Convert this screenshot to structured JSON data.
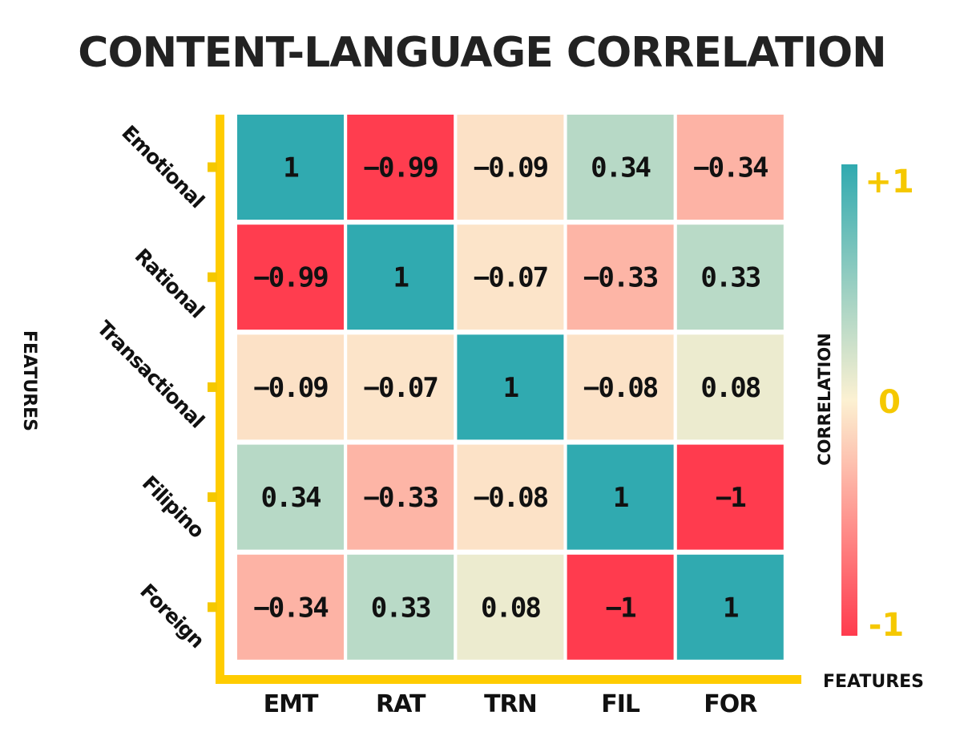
{
  "chart_data": {
    "type": "heatmap",
    "title": "CONTENT-LANGUAGE CORRELATION",
    "xlabel": "FEATURES",
    "ylabel": "FEATURES",
    "x_categories": [
      "EMT",
      "RAT",
      "TRN",
      "FIL",
      "FOR"
    ],
    "y_categories": [
      "Emotional",
      "Rational",
      "Transactional",
      "Filipino",
      "Foreign"
    ],
    "values": [
      [
        1,
        -0.99,
        -0.09,
        0.34,
        -0.34
      ],
      [
        -0.99,
        1,
        -0.07,
        -0.33,
        0.33
      ],
      [
        -0.09,
        -0.07,
        1,
        -0.08,
        0.08
      ],
      [
        0.34,
        -0.33,
        -0.08,
        1,
        -1
      ],
      [
        -0.34,
        0.33,
        0.08,
        -1,
        1
      ]
    ],
    "value_labels": [
      [
        "1",
        "-0.99",
        "-0.09",
        "0.34",
        "-0.34"
      ],
      [
        "-0.99",
        "1",
        "-0.07",
        "-0.33",
        "0.33"
      ],
      [
        "-0.09",
        "-0.07",
        "1",
        "-0.08",
        "0.08"
      ],
      [
        "0.34",
        "-0.33",
        "-0.08",
        "1",
        "-1"
      ],
      [
        "-0.34",
        "0.33",
        "0.08",
        "-1",
        "1"
      ]
    ],
    "colorbar": {
      "label": "CORRELATION",
      "range": [
        -1,
        1
      ],
      "tick_labels": [
        "+1",
        "0",
        "-1"
      ],
      "colors": [
        "#FF3B4E",
        "#FCF1D2",
        "#30AAB0"
      ]
    },
    "axis_color": "#FFCC00",
    "tick_color": "#F5C800"
  }
}
